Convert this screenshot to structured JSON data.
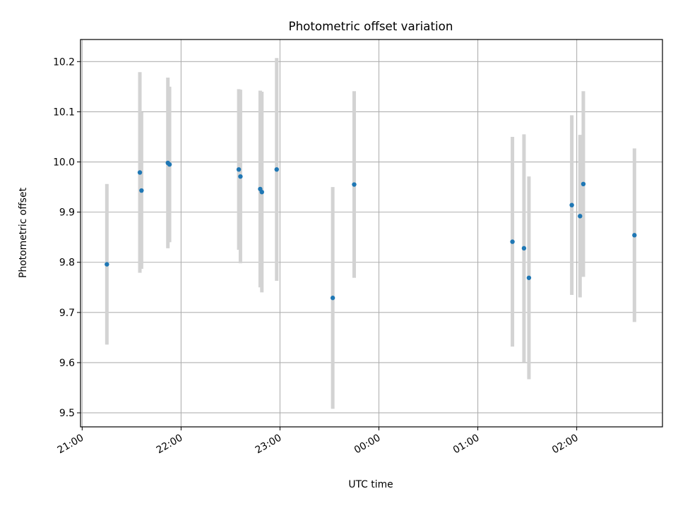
{
  "chart_data": {
    "type": "scatter",
    "title": "Photometric offset variation",
    "xlabel": "UTC time",
    "ylabel": "Photometric offset",
    "x_ticks": [
      "21:00",
      "22:00",
      "23:00",
      "00:00",
      "01:00",
      "02:00"
    ],
    "y_ticks": [
      "9.5",
      "9.6",
      "9.7",
      "9.8",
      "9.9",
      "10.0",
      "10.1",
      "10.2"
    ],
    "xlim": [
      "20:59",
      "02:52"
    ],
    "ylim": [
      9.472,
      10.244
    ],
    "grid": true,
    "colors": {
      "point": "#1f77b4",
      "errorbar": "#d3d3d3",
      "grid": "#b0b0b0"
    },
    "points": [
      {
        "x": "21:15",
        "y": 9.796,
        "err": 0.16
      },
      {
        "x": "21:35",
        "y": 9.979,
        "err": 0.2
      },
      {
        "x": "21:36",
        "y": 9.943,
        "err": 0.156
      },
      {
        "x": "21:52",
        "y": 9.998,
        "err": 0.17
      },
      {
        "x": "21:53",
        "y": 9.995,
        "err": 0.155
      },
      {
        "x": "22:35",
        "y": 9.985,
        "err": 0.16
      },
      {
        "x": "22:36",
        "y": 9.971,
        "err": 0.173
      },
      {
        "x": "22:48",
        "y": 9.946,
        "err": 0.196
      },
      {
        "x": "22:49",
        "y": 9.94,
        "err": 0.2
      },
      {
        "x": "22:58",
        "y": 9.985,
        "err": 0.222
      },
      {
        "x": "23:32",
        "y": 9.729,
        "err": 0.221
      },
      {
        "x": "23:45",
        "y": 9.955,
        "err": 0.186
      },
      {
        "x": "01:21",
        "y": 9.841,
        "err": 0.209
      },
      {
        "x": "01:28",
        "y": 9.828,
        "err": 0.227
      },
      {
        "x": "01:31",
        "y": 9.769,
        "err": 0.202
      },
      {
        "x": "01:57",
        "y": 9.914,
        "err": 0.179
      },
      {
        "x": "02:02",
        "y": 9.892,
        "err": 0.162
      },
      {
        "x": "02:04",
        "y": 9.956,
        "err": 0.185
      },
      {
        "x": "02:35",
        "y": 9.854,
        "err": 0.173
      }
    ]
  }
}
